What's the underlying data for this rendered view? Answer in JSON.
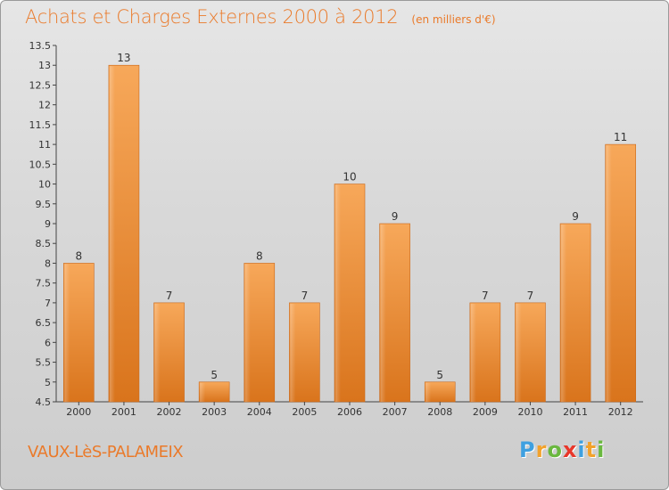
{
  "header": {
    "title": "Achats et Charges Externes 2000 à 2012",
    "subtitle": "(en milliers d'€)"
  },
  "footer": {
    "commune": "VAUX-LèS-PALAMEIX",
    "logo_text": "Proxiti",
    "logo_colors": [
      "#3fa0e0",
      "#f2a22c",
      "#6ab83f",
      "#e8372a",
      "#3fa0e0",
      "#f2a22c",
      "#6ab83f"
    ]
  },
  "colors": {
    "accent": "#ea7a2a",
    "bar_light": "#f7a85a",
    "bar_dark": "#d9741c"
  },
  "chart_data": {
    "type": "bar",
    "title": "Achats et Charges Externes 2000 à 2012",
    "subtitle": "(en milliers d'€)",
    "categories": [
      "2000",
      "2001",
      "2002",
      "2003",
      "2004",
      "2005",
      "2006",
      "2007",
      "2008",
      "2009",
      "2010",
      "2011",
      "2012"
    ],
    "values": [
      8,
      13,
      7,
      5,
      8,
      7,
      10,
      9,
      5,
      7,
      7,
      9,
      11
    ],
    "value_labels": [
      "8",
      "13",
      "7",
      "5",
      "8",
      "7",
      "10",
      "9",
      "5",
      "7",
      "7",
      "9",
      "11"
    ],
    "ylim": [
      4.5,
      13.5
    ],
    "yticks": [
      "4.5",
      "5",
      "5.5",
      "6",
      "6.5",
      "7",
      "7.5",
      "8",
      "8.5",
      "9",
      "9.5",
      "10",
      "10.5",
      "11",
      "11.5",
      "12",
      "12.5",
      "13",
      "13.5"
    ],
    "grid": false,
    "legend": "none"
  }
}
